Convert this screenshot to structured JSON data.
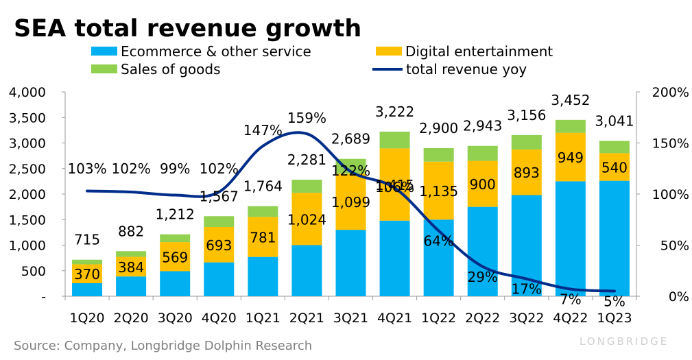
{
  "chart_data": {
    "type": "bar",
    "title": "SEA total revenue growth",
    "source": "Source: Company, Longbridge Dolphin Research",
    "watermark": "LONGBRIDGE",
    "categories": [
      "1Q20",
      "2Q20",
      "3Q20",
      "4Q20",
      "1Q21",
      "2Q21",
      "3Q21",
      "4Q21",
      "1Q22",
      "2Q22",
      "3Q22",
      "4Q22",
      "1Q23"
    ],
    "stacked": true,
    "totals": [
      715,
      882,
      1212,
      1567,
      1764,
      2281,
      2689,
      3222,
      2900,
      2943,
      3156,
      3452,
      3041
    ],
    "total_labels": [
      "715",
      "882",
      "1,212",
      "1,567",
      "1,764",
      "2,281",
      "2,689",
      "3,222",
      "2,900",
      "2,943",
      "3,156",
      "3,452",
      "3,041"
    ],
    "series": [
      {
        "name": "Ecommerce & other service",
        "type": "bar",
        "color": "#00B0F0",
        "values": [
          255,
          387,
          490,
          663,
          770,
          1000,
          1300,
          1480,
          1500,
          1750,
          1980,
          2250,
          2260
        ]
      },
      {
        "name": "Digital entertainment",
        "type": "bar",
        "color": "#FFC000",
        "values": [
          370,
          384,
          569,
          693,
          781,
          1024,
          1099,
          1415,
          1135,
          900,
          893,
          949,
          540
        ],
        "labels": [
          "370",
          "384",
          "569",
          "693",
          "781",
          "1,024",
          "1,099",
          "1,415",
          "1,135",
          "900",
          "893",
          "949",
          "540"
        ]
      },
      {
        "name": "Sales of goods",
        "type": "bar",
        "color": "#92D050",
        "values": [
          90,
          111,
          153,
          211,
          213,
          257,
          290,
          327,
          265,
          293,
          283,
          253,
          241
        ]
      },
      {
        "name": "total revenue yoy",
        "type": "line",
        "axis": "right",
        "color": "#002D8A",
        "values": [
          103,
          102,
          99,
          102,
          147,
          159,
          122,
          106,
          64,
          29,
          17,
          7,
          5
        ],
        "labels": [
          "103%",
          "102%",
          "99%",
          "102%",
          "147%",
          "159%",
          "122%",
          "106%",
          "64%",
          "29%",
          "17%",
          "7%",
          "5%"
        ]
      }
    ],
    "y_left": {
      "min": 0,
      "max": 4000,
      "ticks": [
        0,
        500,
        1000,
        1500,
        2000,
        2500,
        3000,
        3500,
        4000
      ],
      "tick_labels": [
        "-",
        "500",
        "1,000",
        "1,500",
        "2,000",
        "2,500",
        "3,000",
        "3,500",
        "4,000"
      ]
    },
    "y_right": {
      "min": 0,
      "max": 200,
      "ticks": [
        0,
        50,
        100,
        150,
        200
      ],
      "tick_labels": [
        "0%",
        "50%",
        "100%",
        "150%",
        "200%"
      ]
    },
    "legend": {
      "placement": "top"
    }
  }
}
